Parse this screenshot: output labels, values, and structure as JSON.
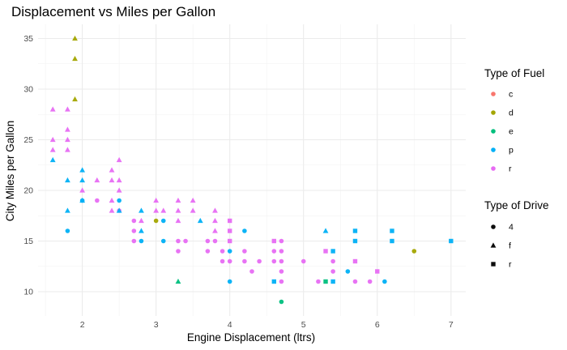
{
  "chart_data": {
    "type": "scatter",
    "title": "Displacement vs Miles per Gallon",
    "xlabel": "Engine Displacement (ltrs)",
    "ylabel": "City Miles per Gallon",
    "xlim": [
      1.4,
      7.2
    ],
    "ylim": [
      7.6,
      36.4
    ],
    "xticks": [
      2,
      3,
      4,
      5,
      6,
      7
    ],
    "yticks": [
      10,
      15,
      20,
      25,
      30,
      35
    ],
    "grid": true,
    "legend_placement": "right",
    "color_legend": {
      "title": "Type of Fuel",
      "entries": [
        {
          "key": "c",
          "color": "#F8766D"
        },
        {
          "key": "d",
          "color": "#A3A500"
        },
        {
          "key": "e",
          "color": "#00BF7D"
        },
        {
          "key": "p",
          "color": "#00B0F6"
        },
        {
          "key": "r",
          "color": "#E76BF3"
        }
      ]
    },
    "shape_legend": {
      "title": "Type of Drive",
      "entries": [
        {
          "key": "4",
          "shape": "circle"
        },
        {
          "key": "f",
          "shape": "triangle"
        },
        {
          "key": "r",
          "shape": "square"
        }
      ]
    },
    "points": [
      {
        "x": 1.6,
        "y": 28,
        "fuel": "r",
        "drive": "f"
      },
      {
        "x": 1.6,
        "y": 25,
        "fuel": "r",
        "drive": "f"
      },
      {
        "x": 1.6,
        "y": 24,
        "fuel": "r",
        "drive": "f"
      },
      {
        "x": 1.6,
        "y": 23,
        "fuel": "p",
        "drive": "f"
      },
      {
        "x": 1.8,
        "y": 28,
        "fuel": "r",
        "drive": "f"
      },
      {
        "x": 1.8,
        "y": 26,
        "fuel": "r",
        "drive": "f"
      },
      {
        "x": 1.8,
        "y": 25,
        "fuel": "r",
        "drive": "f"
      },
      {
        "x": 1.8,
        "y": 24,
        "fuel": "r",
        "drive": "f"
      },
      {
        "x": 1.8,
        "y": 21,
        "fuel": "p",
        "drive": "f"
      },
      {
        "x": 1.8,
        "y": 18,
        "fuel": "p",
        "drive": "f"
      },
      {
        "x": 1.8,
        "y": 16,
        "fuel": "p",
        "drive": "4"
      },
      {
        "x": 1.9,
        "y": 35,
        "fuel": "d",
        "drive": "f"
      },
      {
        "x": 1.9,
        "y": 33,
        "fuel": "d",
        "drive": "f"
      },
      {
        "x": 1.9,
        "y": 29,
        "fuel": "d",
        "drive": "f"
      },
      {
        "x": 2.0,
        "y": 22,
        "fuel": "p",
        "drive": "f"
      },
      {
        "x": 2.0,
        "y": 21,
        "fuel": "p",
        "drive": "f"
      },
      {
        "x": 2.0,
        "y": 20,
        "fuel": "r",
        "drive": "f"
      },
      {
        "x": 2.0,
        "y": 19,
        "fuel": "p",
        "drive": "f"
      },
      {
        "x": 2.0,
        "y": 19,
        "fuel": "p",
        "drive": "4"
      },
      {
        "x": 2.2,
        "y": 21,
        "fuel": "r",
        "drive": "f"
      },
      {
        "x": 2.2,
        "y": 19,
        "fuel": "r",
        "drive": "4"
      },
      {
        "x": 2.4,
        "y": 22,
        "fuel": "r",
        "drive": "f"
      },
      {
        "x": 2.4,
        "y": 21,
        "fuel": "r",
        "drive": "f"
      },
      {
        "x": 2.4,
        "y": 19,
        "fuel": "r",
        "drive": "f"
      },
      {
        "x": 2.4,
        "y": 18,
        "fuel": "r",
        "drive": "f"
      },
      {
        "x": 2.5,
        "y": 23,
        "fuel": "r",
        "drive": "f"
      },
      {
        "x": 2.5,
        "y": 21,
        "fuel": "r",
        "drive": "f"
      },
      {
        "x": 2.5,
        "y": 20,
        "fuel": "r",
        "drive": "f"
      },
      {
        "x": 2.5,
        "y": 19,
        "fuel": "p",
        "drive": "4"
      },
      {
        "x": 2.5,
        "y": 18,
        "fuel": "r",
        "drive": "4"
      },
      {
        "x": 2.5,
        "y": 18,
        "fuel": "p",
        "drive": "f"
      },
      {
        "x": 2.7,
        "y": 17,
        "fuel": "r",
        "drive": "4"
      },
      {
        "x": 2.7,
        "y": 16,
        "fuel": "r",
        "drive": "4"
      },
      {
        "x": 2.7,
        "y": 15,
        "fuel": "r",
        "drive": "4"
      },
      {
        "x": 2.8,
        "y": 18,
        "fuel": "p",
        "drive": "f"
      },
      {
        "x": 2.8,
        "y": 17,
        "fuel": "r",
        "drive": "f"
      },
      {
        "x": 2.8,
        "y": 16,
        "fuel": "p",
        "drive": "f"
      },
      {
        "x": 2.8,
        "y": 15,
        "fuel": "p",
        "drive": "4"
      },
      {
        "x": 3.0,
        "y": 19,
        "fuel": "r",
        "drive": "f"
      },
      {
        "x": 3.0,
        "y": 18,
        "fuel": "r",
        "drive": "f"
      },
      {
        "x": 3.0,
        "y": 17,
        "fuel": "d",
        "drive": "4"
      },
      {
        "x": 3.1,
        "y": 18,
        "fuel": "r",
        "drive": "f"
      },
      {
        "x": 3.1,
        "y": 17,
        "fuel": "p",
        "drive": "4"
      },
      {
        "x": 3.1,
        "y": 15,
        "fuel": "p",
        "drive": "4"
      },
      {
        "x": 3.3,
        "y": 19,
        "fuel": "r",
        "drive": "f"
      },
      {
        "x": 3.3,
        "y": 18,
        "fuel": "r",
        "drive": "f"
      },
      {
        "x": 3.3,
        "y": 17,
        "fuel": "r",
        "drive": "f"
      },
      {
        "x": 3.3,
        "y": 15,
        "fuel": "r",
        "drive": "4"
      },
      {
        "x": 3.3,
        "y": 14,
        "fuel": "r",
        "drive": "4"
      },
      {
        "x": 3.3,
        "y": 11,
        "fuel": "e",
        "drive": "f"
      },
      {
        "x": 3.4,
        "y": 15,
        "fuel": "r",
        "drive": "4"
      },
      {
        "x": 3.5,
        "y": 19,
        "fuel": "r",
        "drive": "f"
      },
      {
        "x": 3.5,
        "y": 18,
        "fuel": "r",
        "drive": "f"
      },
      {
        "x": 3.6,
        "y": 17,
        "fuel": "p",
        "drive": "f"
      },
      {
        "x": 3.7,
        "y": 15,
        "fuel": "r",
        "drive": "4"
      },
      {
        "x": 3.7,
        "y": 14,
        "fuel": "r",
        "drive": "4"
      },
      {
        "x": 3.8,
        "y": 18,
        "fuel": "r",
        "drive": "f"
      },
      {
        "x": 3.8,
        "y": 17,
        "fuel": "r",
        "drive": "f"
      },
      {
        "x": 3.8,
        "y": 16,
        "fuel": "r",
        "drive": "f"
      },
      {
        "x": 3.8,
        "y": 15,
        "fuel": "r",
        "drive": "4"
      },
      {
        "x": 3.9,
        "y": 14,
        "fuel": "r",
        "drive": "4"
      },
      {
        "x": 3.9,
        "y": 13,
        "fuel": "r",
        "drive": "4"
      },
      {
        "x": 4.0,
        "y": 17,
        "fuel": "r",
        "drive": "r"
      },
      {
        "x": 4.0,
        "y": 16,
        "fuel": "r",
        "drive": "r"
      },
      {
        "x": 4.0,
        "y": 15,
        "fuel": "r",
        "drive": "r"
      },
      {
        "x": 4.0,
        "y": 14,
        "fuel": "p",
        "drive": "4"
      },
      {
        "x": 4.0,
        "y": 13,
        "fuel": "r",
        "drive": "4"
      },
      {
        "x": 4.0,
        "y": 11,
        "fuel": "p",
        "drive": "4"
      },
      {
        "x": 4.2,
        "y": 16,
        "fuel": "p",
        "drive": "4"
      },
      {
        "x": 4.2,
        "y": 14,
        "fuel": "r",
        "drive": "4"
      },
      {
        "x": 4.2,
        "y": 13,
        "fuel": "r",
        "drive": "4"
      },
      {
        "x": 4.3,
        "y": 12,
        "fuel": "r",
        "drive": "4"
      },
      {
        "x": 4.4,
        "y": 13,
        "fuel": "r",
        "drive": "4"
      },
      {
        "x": 4.6,
        "y": 15,
        "fuel": "r",
        "drive": "r"
      },
      {
        "x": 4.6,
        "y": 14,
        "fuel": "r",
        "drive": "4"
      },
      {
        "x": 4.6,
        "y": 13,
        "fuel": "r",
        "drive": "4"
      },
      {
        "x": 4.6,
        "y": 11,
        "fuel": "p",
        "drive": "r"
      },
      {
        "x": 4.7,
        "y": 15,
        "fuel": "r",
        "drive": "4"
      },
      {
        "x": 4.7,
        "y": 14,
        "fuel": "r",
        "drive": "4"
      },
      {
        "x": 4.7,
        "y": 13,
        "fuel": "r",
        "drive": "4"
      },
      {
        "x": 4.7,
        "y": 12,
        "fuel": "r",
        "drive": "4"
      },
      {
        "x": 4.7,
        "y": 11,
        "fuel": "r",
        "drive": "4"
      },
      {
        "x": 4.7,
        "y": 9,
        "fuel": "e",
        "drive": "4"
      },
      {
        "x": 5.0,
        "y": 13,
        "fuel": "r",
        "drive": "4"
      },
      {
        "x": 5.2,
        "y": 11,
        "fuel": "r",
        "drive": "4"
      },
      {
        "x": 5.3,
        "y": 16,
        "fuel": "p",
        "drive": "f"
      },
      {
        "x": 5.3,
        "y": 14,
        "fuel": "r",
        "drive": "r"
      },
      {
        "x": 5.3,
        "y": 11,
        "fuel": "e",
        "drive": "r"
      },
      {
        "x": 5.4,
        "y": 14,
        "fuel": "p",
        "drive": "r"
      },
      {
        "x": 5.4,
        "y": 13,
        "fuel": "r",
        "drive": "4"
      },
      {
        "x": 5.4,
        "y": 12,
        "fuel": "r",
        "drive": "4"
      },
      {
        "x": 5.4,
        "y": 11,
        "fuel": "p",
        "drive": "r"
      },
      {
        "x": 5.6,
        "y": 12,
        "fuel": "p",
        "drive": "4"
      },
      {
        "x": 5.7,
        "y": 16,
        "fuel": "p",
        "drive": "r"
      },
      {
        "x": 5.7,
        "y": 15,
        "fuel": "p",
        "drive": "r"
      },
      {
        "x": 5.7,
        "y": 13,
        "fuel": "r",
        "drive": "r"
      },
      {
        "x": 5.7,
        "y": 11,
        "fuel": "r",
        "drive": "4"
      },
      {
        "x": 5.9,
        "y": 11,
        "fuel": "r",
        "drive": "4"
      },
      {
        "x": 6.0,
        "y": 12,
        "fuel": "r",
        "drive": "r"
      },
      {
        "x": 6.1,
        "y": 11,
        "fuel": "p",
        "drive": "4"
      },
      {
        "x": 6.2,
        "y": 16,
        "fuel": "p",
        "drive": "r"
      },
      {
        "x": 6.2,
        "y": 15,
        "fuel": "p",
        "drive": "r"
      },
      {
        "x": 6.5,
        "y": 14,
        "fuel": "d",
        "drive": "4"
      },
      {
        "x": 7.0,
        "y": 15,
        "fuel": "p",
        "drive": "r"
      }
    ]
  }
}
